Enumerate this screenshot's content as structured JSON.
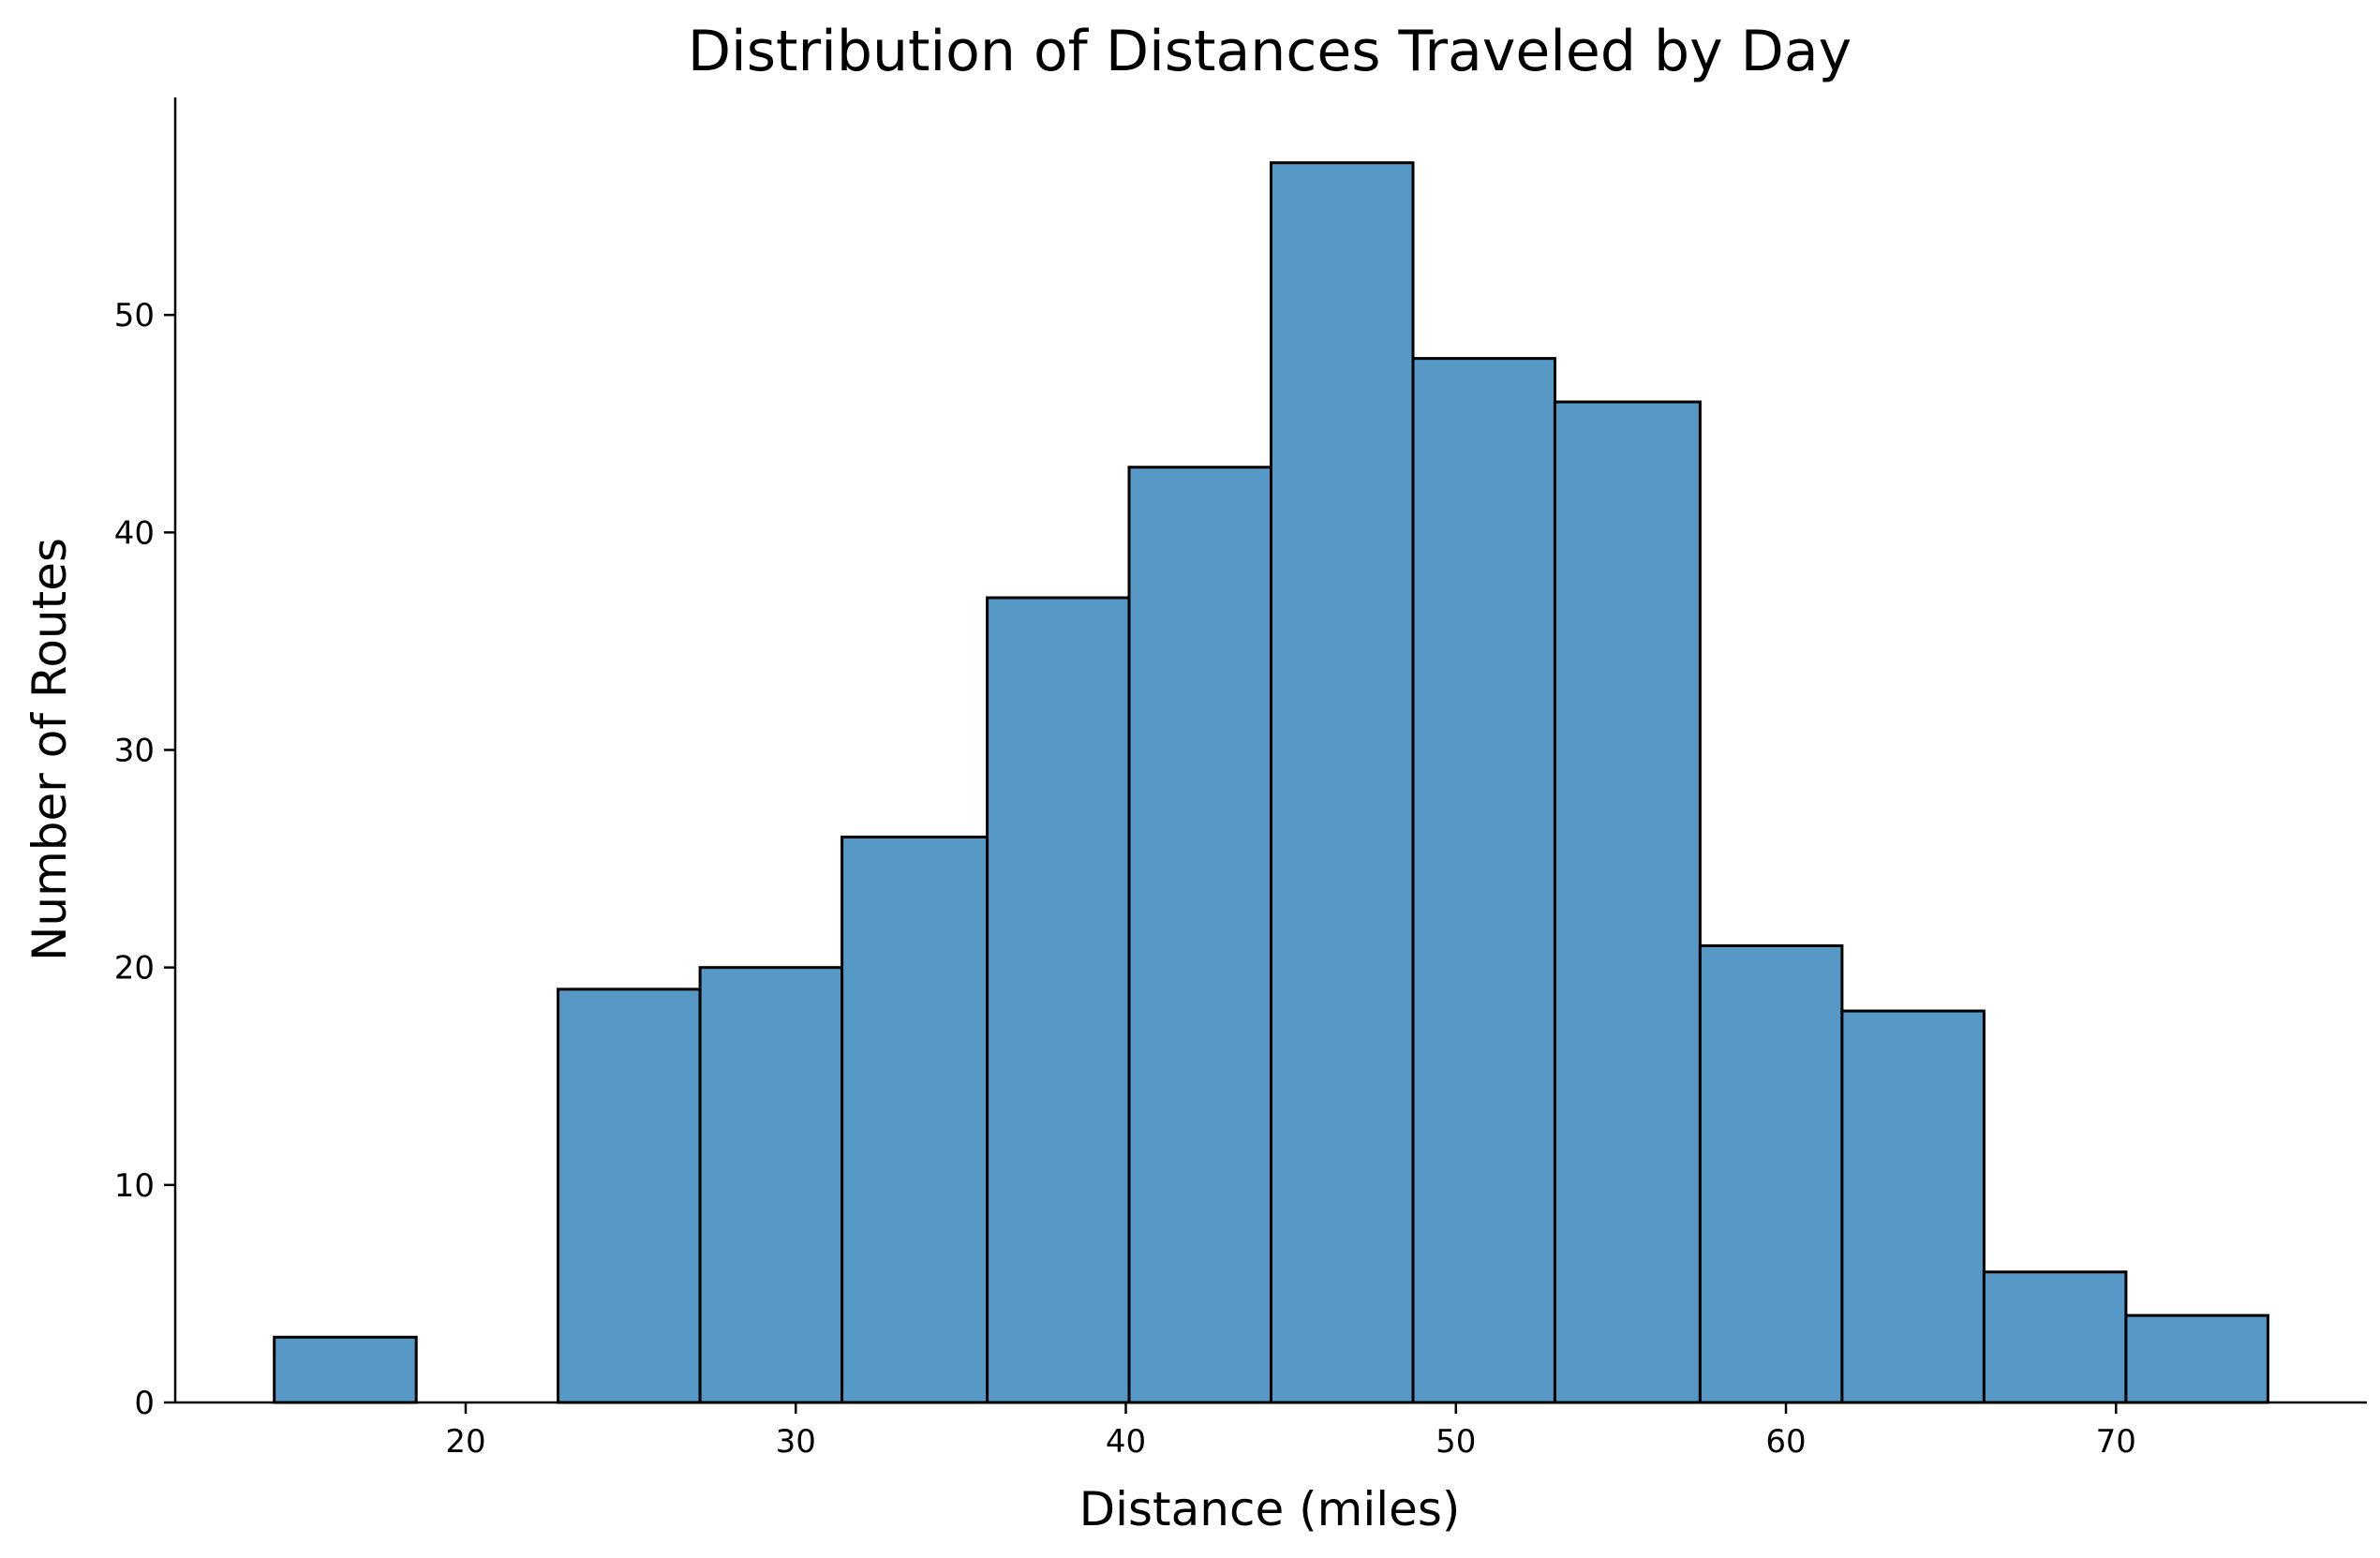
{
  "chart_data": {
    "type": "bar",
    "title": "Distribution of Distances Traveled by Day",
    "xlabel": "Distance (miles)",
    "ylabel": "Number of Routes",
    "bins": [
      {
        "x0": 14.2,
        "x1": 18.5,
        "count": 3
      },
      {
        "x0": 18.5,
        "x1": 22.8,
        "count": 0
      },
      {
        "x0": 22.8,
        "x1": 27.1,
        "count": 19
      },
      {
        "x0": 27.1,
        "x1": 31.4,
        "count": 20
      },
      {
        "x0": 31.4,
        "x1": 35.8,
        "count": 26
      },
      {
        "x0": 35.8,
        "x1": 40.1,
        "count": 37
      },
      {
        "x0": 40.1,
        "x1": 44.4,
        "count": 43
      },
      {
        "x0": 44.4,
        "x1": 48.7,
        "count": 57
      },
      {
        "x0": 48.7,
        "x1": 53.0,
        "count": 48
      },
      {
        "x0": 53.0,
        "x1": 57.4,
        "count": 46
      },
      {
        "x0": 57.4,
        "x1": 61.7,
        "count": 21
      },
      {
        "x0": 61.7,
        "x1": 66.0,
        "count": 18
      },
      {
        "x0": 66.0,
        "x1": 70.3,
        "count": 6
      },
      {
        "x0": 70.3,
        "x1": 74.6,
        "count": 4
      }
    ],
    "xticks": [
      "20",
      "30",
      "40",
      "50",
      "60",
      "70"
    ],
    "yticks": [
      "0",
      "10",
      "20",
      "30",
      "40",
      "50"
    ],
    "xlim": [
      11.2,
      77.6
    ],
    "ylim": [
      0,
      60
    ],
    "grid": false,
    "bar_color": "#5799c6",
    "edge_color": "#000000"
  }
}
